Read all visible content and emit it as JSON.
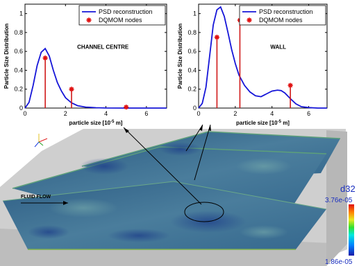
{
  "colors": {
    "psd_line": "#1515d8",
    "node_marker": "#e01010",
    "node_stem": "#d01818",
    "colorbar_label": "#1a2fbf",
    "domain_fill": "#3f6f92",
    "wall_grey": "#c9c9c9"
  },
  "left_plot": {
    "annotation": "CHANNEL CENTRE",
    "legend": {
      "psd": "PSD reconstruction",
      "nodes": "DQMOM nodes"
    }
  },
  "right_plot": {
    "annotation": "WALL",
    "legend": {
      "psd": "PSD reconstruction",
      "nodes": "DQMOM nodes"
    }
  },
  "axes": {
    "y_label": "Particle Size Distribution",
    "x_label_prefix": "particle size [10",
    "x_label_exp": "-5",
    "x_label_suffix": " m]",
    "x_ticks": [
      "0",
      "2",
      "4",
      "6"
    ],
    "y_ticks": [
      "0",
      "0.2",
      "0.4",
      "0.6",
      "0.8",
      "1"
    ]
  },
  "flow_label": "FLUID FLOW",
  "colorbar": {
    "title": "d32",
    "max_label": "3.76e-05",
    "min_label": "1.86e-05"
  },
  "chart_data": [
    {
      "type": "line",
      "title": "",
      "annotation": "CHANNEL CENTRE",
      "xlabel": "particle size [10^-5 m]",
      "ylabel": "Particle Size Distribution",
      "xlim": [
        0,
        7
      ],
      "ylim": [
        0,
        1.1
      ],
      "series": [
        {
          "name": "PSD reconstruction",
          "x": [
            0,
            0.2,
            0.4,
            0.6,
            0.8,
            1.0,
            1.2,
            1.4,
            1.6,
            1.8,
            2.0,
            2.3,
            2.6,
            3.0,
            3.5,
            4.0,
            5.0,
            6.0,
            7.0
          ],
          "y": [
            0,
            0.06,
            0.24,
            0.45,
            0.59,
            0.63,
            0.55,
            0.4,
            0.27,
            0.18,
            0.11,
            0.055,
            0.025,
            0.01,
            0.004,
            0.001,
            0,
            0,
            0
          ]
        },
        {
          "name": "DQMOM nodes",
          "x": [
            1.0,
            2.3,
            5.0
          ],
          "y": [
            0.53,
            0.2,
            0.01
          ]
        }
      ],
      "legend": "top-right"
    },
    {
      "type": "line",
      "title": "",
      "annotation": "WALL",
      "xlabel": "particle size [10^-5 m]",
      "ylabel": "Particle Size Distribution",
      "xlim": [
        0,
        7
      ],
      "ylim": [
        0,
        1.1
      ],
      "series": [
        {
          "name": "PSD reconstruction",
          "x": [
            0,
            0.2,
            0.4,
            0.6,
            0.8,
            1.0,
            1.2,
            1.4,
            1.6,
            1.8,
            2.0,
            2.2,
            2.5,
            2.8,
            3.1,
            3.4,
            3.7,
            4.0,
            4.3,
            4.5,
            4.7,
            5.0,
            5.3,
            5.6,
            6.0,
            6.5,
            7.0
          ],
          "y": [
            0,
            0.05,
            0.22,
            0.55,
            0.88,
            1.04,
            1.07,
            0.97,
            0.8,
            0.62,
            0.47,
            0.35,
            0.24,
            0.17,
            0.13,
            0.12,
            0.15,
            0.18,
            0.19,
            0.185,
            0.16,
            0.1,
            0.045,
            0.015,
            0.005,
            0,
            0
          ]
        },
        {
          "name": "DQMOM nodes",
          "x": [
            1.0,
            2.25,
            5.0
          ],
          "y": [
            0.75,
            0.93,
            0.24
          ]
        }
      ],
      "legend": "top-right"
    }
  ]
}
